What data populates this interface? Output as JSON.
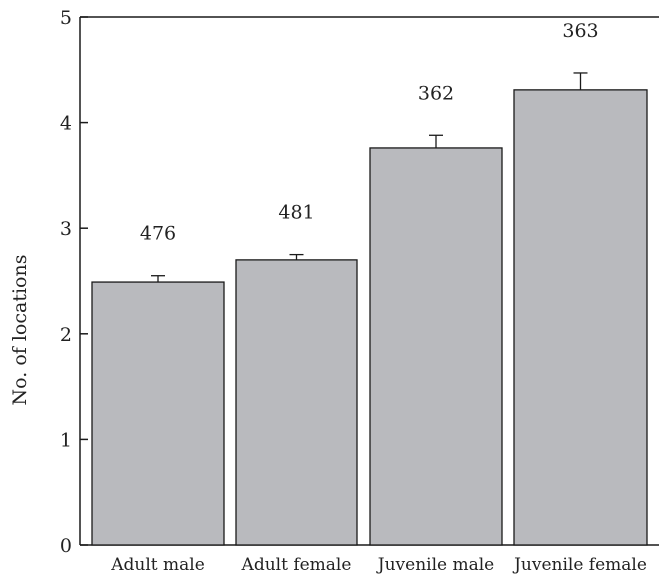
{
  "chart_data": {
    "type": "bar",
    "categories": [
      "Adult male",
      "Adult female",
      "Juvenile male",
      "Juvenile female"
    ],
    "values": [
      2.49,
      2.7,
      3.76,
      4.31
    ],
    "errors": [
      0.06,
      0.05,
      0.12,
      0.16
    ],
    "bar_labels": [
      "476",
      "481",
      "362",
      "363"
    ],
    "title": "",
    "xlabel": "",
    "ylabel": "No. of locations",
    "ylim": [
      0,
      5
    ],
    "yticks": [
      0,
      1,
      2,
      3,
      4,
      5
    ],
    "grid": false,
    "legend": "none",
    "bar_color": "#b9babe",
    "edge_color": "#1a1a1a"
  }
}
